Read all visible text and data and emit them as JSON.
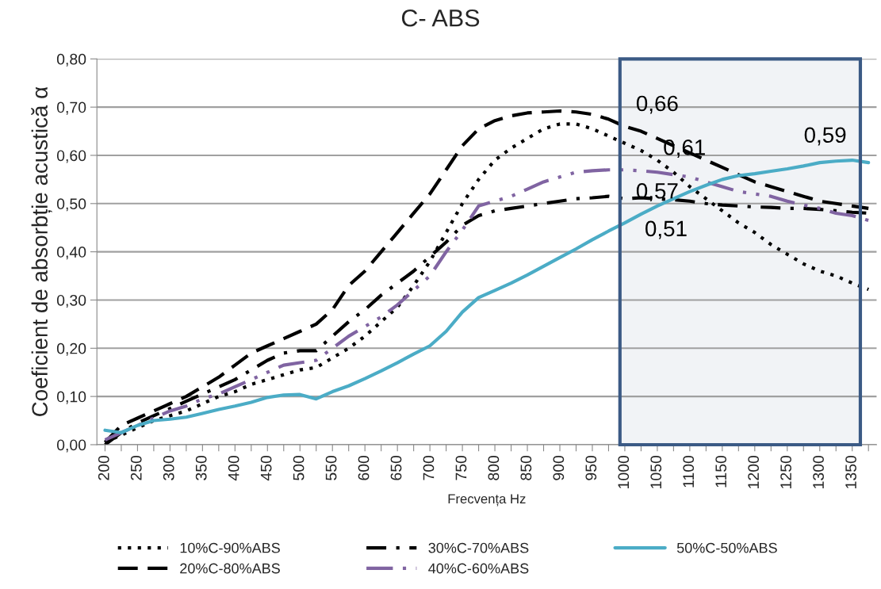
{
  "chart_data": {
    "type": "line",
    "title": "C- ABS",
    "xlabel": "Frecvența Hz",
    "ylabel": "Coeficient de absorbție acustică α",
    "categories": [
      "200",
      null,
      "250",
      null,
      "300",
      null,
      "350",
      null,
      "400",
      null,
      "450",
      null,
      "500",
      null,
      "550",
      null,
      "600",
      null,
      "650",
      null,
      "700",
      null,
      "750",
      null,
      "800",
      null,
      "850",
      null,
      "900",
      null,
      "950",
      null,
      "1000",
      null,
      "1050",
      null,
      "1100",
      null,
      "1150",
      null,
      "1200",
      null,
      "1250",
      null,
      "1300",
      null,
      "1350",
      null
    ],
    "series": [
      {
        "name": "10%C-90%ABS",
        "color": "#000000",
        "line_style": "dotted",
        "values": [
          0.005,
          0.02,
          0.035,
          0.05,
          0.06,
          0.07,
          0.085,
          0.1,
          0.11,
          0.125,
          0.135,
          0.145,
          0.155,
          0.16,
          0.18,
          0.2,
          0.225,
          0.255,
          0.285,
          0.33,
          0.38,
          0.44,
          0.5,
          0.55,
          0.59,
          0.615,
          0.635,
          0.655,
          0.665,
          0.665,
          0.655,
          0.64,
          0.625,
          0.61,
          0.59,
          0.565,
          0.535,
          0.51,
          0.485,
          0.46,
          0.44,
          0.415,
          0.395,
          0.375,
          0.36,
          0.35,
          0.335,
          0.322
        ],
        "value_labels": [
          null,
          null,
          null,
          null,
          null,
          null,
          null,
          null,
          null,
          null,
          null,
          null,
          null,
          null,
          null,
          null,
          null,
          null,
          null,
          null,
          null,
          null,
          null,
          null,
          null,
          null,
          null,
          null,
          null,
          null,
          null,
          null,
          null,
          "0,61",
          null,
          null,
          null,
          null,
          null,
          null,
          null,
          null,
          null,
          null,
          null,
          null,
          null,
          null
        ]
      },
      {
        "name": "20%C-80%ABS",
        "color": "#000000",
        "line_style": "dashed",
        "values": [
          0.005,
          0.04,
          0.055,
          0.07,
          0.085,
          0.1,
          0.12,
          0.14,
          0.165,
          0.19,
          0.205,
          0.22,
          0.235,
          0.25,
          0.28,
          0.33,
          0.36,
          0.4,
          0.44,
          0.48,
          0.52,
          0.57,
          0.62,
          0.655,
          0.672,
          0.682,
          0.688,
          0.69,
          0.692,
          0.69,
          0.685,
          0.675,
          0.66,
          0.65,
          0.635,
          0.62,
          0.605,
          0.59,
          0.575,
          0.56,
          0.545,
          0.535,
          0.525,
          0.515,
          0.505,
          0.5,
          0.495,
          0.49
        ],
        "value_labels": [
          null,
          null,
          null,
          null,
          null,
          null,
          null,
          null,
          null,
          null,
          null,
          null,
          null,
          null,
          null,
          null,
          null,
          null,
          null,
          null,
          null,
          null,
          null,
          null,
          null,
          null,
          null,
          null,
          null,
          null,
          null,
          null,
          "0,66",
          null,
          null,
          null,
          null,
          null,
          null,
          null,
          null,
          null,
          null,
          null,
          null,
          null,
          null,
          null
        ]
      },
      {
        "name": "30%C-70%ABS",
        "color": "#000000",
        "line_style": "dashdot",
        "values": [
          0.0,
          0.025,
          0.045,
          0.06,
          0.075,
          0.09,
          0.105,
          0.12,
          0.135,
          0.155,
          0.175,
          0.19,
          0.195,
          0.195,
          0.225,
          0.255,
          0.28,
          0.31,
          0.335,
          0.36,
          0.39,
          0.42,
          0.455,
          0.475,
          0.485,
          0.49,
          0.495,
          0.5,
          0.505,
          0.51,
          0.512,
          0.515,
          0.51,
          0.512,
          0.51,
          0.508,
          0.505,
          0.5,
          0.497,
          0.495,
          0.493,
          0.492,
          0.49,
          0.49,
          0.488,
          0.485,
          0.482,
          0.48
        ],
        "value_labels": [
          null,
          null,
          null,
          null,
          null,
          null,
          null,
          null,
          null,
          null,
          null,
          null,
          null,
          null,
          null,
          null,
          null,
          null,
          null,
          null,
          null,
          null,
          null,
          null,
          null,
          null,
          null,
          null,
          null,
          null,
          null,
          null,
          "0,51",
          null,
          null,
          null,
          null,
          null,
          null,
          null,
          null,
          null,
          null,
          null,
          null,
          null,
          null,
          null
        ]
      },
      {
        "name": "40%C-60%ABS",
        "color": "#8064a2",
        "line_style": "longdashdotdot",
        "values": [
          0.01,
          0.025,
          0.04,
          0.055,
          0.07,
          0.08,
          0.095,
          0.105,
          0.12,
          0.135,
          0.15,
          0.165,
          0.17,
          0.175,
          0.2,
          0.225,
          0.245,
          0.265,
          0.29,
          0.32,
          0.35,
          0.4,
          0.445,
          0.495,
          0.505,
          0.515,
          0.53,
          0.545,
          0.555,
          0.565,
          0.568,
          0.57,
          0.57,
          0.568,
          0.565,
          0.56,
          0.555,
          0.545,
          0.535,
          0.525,
          0.52,
          0.515,
          0.505,
          0.497,
          0.49,
          0.48,
          0.475,
          0.465
        ],
        "value_labels": [
          null,
          null,
          null,
          null,
          null,
          null,
          null,
          null,
          null,
          null,
          null,
          null,
          null,
          null,
          null,
          null,
          null,
          null,
          null,
          null,
          null,
          null,
          null,
          null,
          null,
          null,
          null,
          null,
          null,
          null,
          null,
          null,
          "0,57",
          null,
          null,
          null,
          null,
          null,
          null,
          null,
          null,
          null,
          null,
          null,
          null,
          null,
          null,
          null
        ]
      },
      {
        "name": "50%C-50%ABS",
        "color": "#4bacc6",
        "line_style": "solid",
        "values": [
          0.03,
          0.025,
          0.04,
          0.05,
          0.053,
          0.057,
          0.065,
          0.073,
          0.08,
          0.088,
          0.098,
          0.103,
          0.104,
          0.095,
          0.11,
          0.122,
          0.137,
          0.153,
          0.17,
          0.188,
          0.205,
          0.235,
          0.275,
          0.305,
          0.32,
          0.335,
          0.352,
          0.37,
          0.388,
          0.406,
          0.425,
          0.443,
          0.46,
          0.478,
          0.495,
          0.51,
          0.525,
          0.538,
          0.55,
          0.558,
          0.562,
          0.567,
          0.572,
          0.578,
          0.585,
          0.588,
          0.59,
          0.585
        ],
        "value_labels": [
          null,
          null,
          null,
          null,
          null,
          null,
          null,
          null,
          null,
          null,
          null,
          null,
          null,
          null,
          null,
          null,
          null,
          null,
          null,
          null,
          null,
          null,
          null,
          null,
          null,
          null,
          null,
          null,
          null,
          null,
          null,
          null,
          null,
          null,
          null,
          null,
          null,
          null,
          null,
          null,
          null,
          null,
          null,
          null,
          null,
          null,
          "0,59",
          null
        ]
      }
    ],
    "ylim": [
      0,
      0.8
    ],
    "yticks": [
      {
        "value": 0,
        "label": "0,00"
      },
      {
        "value": 0.1,
        "label": "0,10"
      },
      {
        "value": 0.2,
        "label": "0,20"
      },
      {
        "value": 0.3,
        "label": "0,30"
      },
      {
        "value": 0.4,
        "label": "0,40"
      },
      {
        "value": 0.5,
        "label": "0,50"
      },
      {
        "value": 0.6,
        "label": "0,60"
      },
      {
        "value": 0.7,
        "label": "0,70"
      },
      {
        "value": 0.8,
        "label": "0,80"
      }
    ],
    "grid": "y",
    "legend": "bottom",
    "bands": [
      {
        "axis": "x",
        "from": "1000",
        "to": "1350",
        "color": "#3b5a85"
      }
    ]
  }
}
